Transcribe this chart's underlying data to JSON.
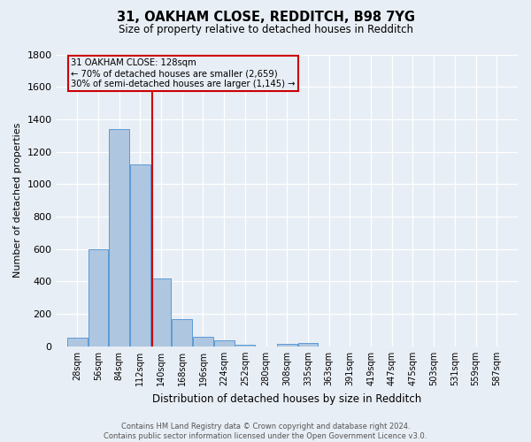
{
  "title": "31, OAKHAM CLOSE, REDDITCH, B98 7YG",
  "subtitle": "Size of property relative to detached houses in Redditch",
  "xlabel": "Distribution of detached houses by size in Redditch",
  "ylabel": "Number of detached properties",
  "categories": [
    "28sqm",
    "56sqm",
    "84sqm",
    "112sqm",
    "140sqm",
    "168sqm",
    "196sqm",
    "224sqm",
    "252sqm",
    "280sqm",
    "308sqm",
    "335sqm",
    "363sqm",
    "391sqm",
    "419sqm",
    "447sqm",
    "475sqm",
    "503sqm",
    "531sqm",
    "559sqm",
    "587sqm"
  ],
  "values": [
    55,
    600,
    1340,
    1120,
    420,
    170,
    60,
    35,
    10,
    0,
    15,
    20,
    0,
    0,
    0,
    0,
    0,
    0,
    0,
    0,
    0
  ],
  "bar_color": "#aec6e0",
  "bar_edge_color": "#5b9bd5",
  "vline_color": "#cc0000",
  "annotation_line1": "31 OAKHAM CLOSE: 128sqm",
  "annotation_line2": "← 70% of detached houses are smaller (2,659)",
  "annotation_line3": "30% of semi-detached houses are larger (1,145) →",
  "annotation_box_color": "#cc0000",
  "ylim": [
    0,
    1800
  ],
  "background_color": "#e8eef5",
  "grid_color": "#ffffff",
  "footer": "Contains HM Land Registry data © Crown copyright and database right 2024.\nContains public sector information licensed under the Open Government Licence v3.0.",
  "bin_width": 28,
  "n_bins": 21,
  "property_sqm": 128
}
